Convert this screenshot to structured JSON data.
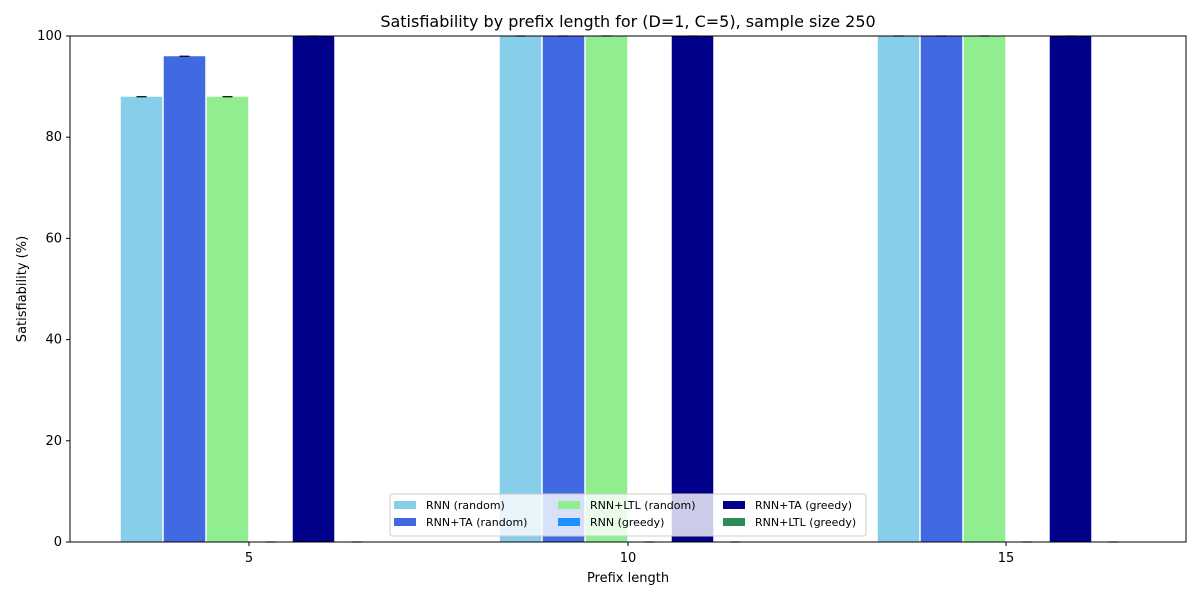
{
  "chart_data": {
    "type": "bar",
    "title": "Satisfiability by prefix length for (D=1, C=5), sample size 250",
    "xlabel": "Prefix length",
    "ylabel": "Satisfiability (%)",
    "categories": [
      "5",
      "10",
      "15"
    ],
    "ylim": [
      0,
      100
    ],
    "yticks": [
      0,
      20,
      40,
      60,
      80,
      100
    ],
    "grid": false,
    "legend_position": "bottom-center",
    "series": [
      {
        "name": "RNN (random)",
        "color": "#87CEEB",
        "values": [
          88,
          100,
          100
        ]
      },
      {
        "name": "RNN+TA (random)",
        "color": "#4169E1",
        "values": [
          96,
          100,
          100
        ]
      },
      {
        "name": "RNN+LTL (random)",
        "color": "#90EE90",
        "values": [
          88,
          100,
          100
        ]
      },
      {
        "name": "RNN (greedy)",
        "color": "#1E90FF",
        "values": [
          0,
          0,
          0
        ]
      },
      {
        "name": "RNN+TA (greedy)",
        "color": "#00008B",
        "values": [
          100,
          100,
          100
        ]
      },
      {
        "name": "RNN+LTL (greedy)",
        "color": "#2E8B57",
        "values": [
          0,
          0,
          0
        ]
      }
    ]
  }
}
